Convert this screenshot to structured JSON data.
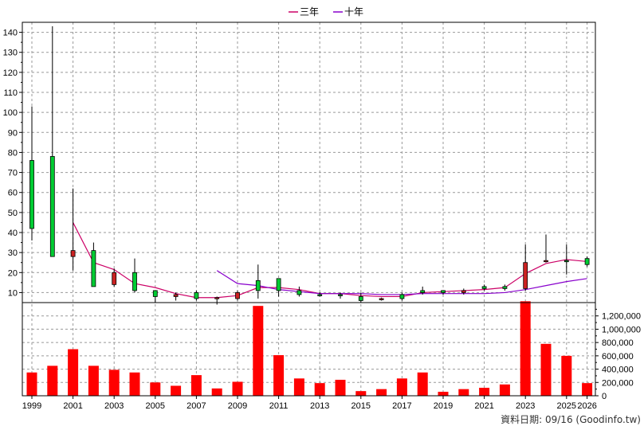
{
  "chart_data": {
    "type": "candlestick",
    "legend": [
      {
        "name": "三年",
        "color": "#cc0066"
      },
      {
        "name": "十年",
        "color": "#8800cc"
      }
    ],
    "legend_placement": "top-center",
    "footer": "資料日期: 09/16  (Goodinfo.tw)",
    "grid": true,
    "colors": {
      "up": "#00cc33",
      "down": "#cc2222",
      "volume": "#ff0000",
      "grid": "#999999"
    },
    "x_labels": [
      "1999",
      "2001",
      "2003",
      "2005",
      "2007",
      "2009",
      "2011",
      "2013",
      "2015",
      "2017",
      "2019",
      "2021",
      "2023",
      "2025",
      "2026"
    ],
    "price_axis": {
      "ylim": [
        5,
        145
      ],
      "ticks": [
        10,
        20,
        30,
        40,
        50,
        60,
        70,
        80,
        90,
        100,
        110,
        120,
        130,
        140
      ]
    },
    "volume_axis": {
      "ylim": [
        0,
        1400000
      ],
      "ticks": [
        "0",
        "200,000",
        "400,000",
        "600,000",
        "800,000",
        "1,000,000",
        "1,200,000"
      ]
    },
    "years": [
      1999,
      2000,
      2001,
      2002,
      2003,
      2004,
      2005,
      2006,
      2007,
      2008,
      2009,
      2010,
      2011,
      2012,
      2013,
      2014,
      2015,
      2016,
      2017,
      2018,
      2019,
      2020,
      2021,
      2022,
      2023,
      2024,
      2025,
      2026
    ],
    "candles": [
      {
        "open": 42,
        "high": 103,
        "low": 36,
        "close": 76
      },
      {
        "open": 28,
        "high": 143,
        "low": 28,
        "close": 78
      },
      {
        "open": 31,
        "high": 62,
        "low": 21,
        "close": 28
      },
      {
        "open": 13,
        "high": 35,
        "low": 13,
        "close": 31
      },
      {
        "open": 20,
        "high": 22,
        "low": 13,
        "close": 14
      },
      {
        "open": 11,
        "high": 27,
        "low": 10,
        "close": 20
      },
      {
        "open": 8,
        "high": 11,
        "low": 5,
        "close": 11
      },
      {
        "open": 9,
        "high": 10,
        "low": 6,
        "close": 8
      },
      {
        "open": 7,
        "high": 11,
        "low": 6,
        "close": 10
      },
      {
        "open": 7.5,
        "high": 8,
        "low": 4,
        "close": 7
      },
      {
        "open": 10,
        "high": 11,
        "low": 6,
        "close": 7
      },
      {
        "open": 11,
        "high": 24,
        "low": 7,
        "close": 16
      },
      {
        "open": 11,
        "high": 17,
        "low": 8,
        "close": 17
      },
      {
        "open": 9,
        "high": 13,
        "low": 8,
        "close": 11
      },
      {
        "open": 9,
        "high": 10,
        "low": 8,
        "close": 9
      },
      {
        "open": 9,
        "high": 10,
        "low": 7,
        "close": 9
      },
      {
        "open": 6,
        "high": 10,
        "low": 5,
        "close": 8
      },
      {
        "open": 7,
        "high": 7.5,
        "low": 6,
        "close": 6.5
      },
      {
        "open": 7,
        "high": 10,
        "low": 6,
        "close": 9
      },
      {
        "open": 10,
        "high": 13,
        "low": 9,
        "close": 11
      },
      {
        "open": 10,
        "high": 11,
        "low": 9,
        "close": 11
      },
      {
        "open": 11,
        "high": 12,
        "low": 9,
        "close": 10
      },
      {
        "open": 12,
        "high": 14,
        "low": 11,
        "close": 13
      },
      {
        "open": 12,
        "high": 14,
        "low": 11,
        "close": 13
      },
      {
        "open": 25,
        "high": 34,
        "low": 11,
        "close": 12
      },
      {
        "open": 26,
        "high": 39,
        "low": 25,
        "close": 25.5
      },
      {
        "open": 26,
        "high": 34,
        "low": 19,
        "close": 26
      },
      {
        "open": 24,
        "high": 28,
        "low": 23,
        "close": 27
      }
    ],
    "volume": [
      350000,
      450000,
      700000,
      450000,
      390000,
      350000,
      200000,
      150000,
      310000,
      110000,
      210000,
      1350000,
      610000,
      260000,
      190000,
      240000,
      70000,
      100000,
      260000,
      350000,
      60000,
      100000,
      120000,
      170000,
      1420000,
      780000,
      600000,
      190000
    ],
    "series": [
      {
        "name": "三年",
        "x": [
          2001,
          2002,
          2003,
          2004,
          2005,
          2006,
          2007,
          2008,
          2009,
          2010,
          2011,
          2012,
          2013,
          2014,
          2015,
          2016,
          2017,
          2018,
          2019,
          2020,
          2021,
          2022,
          2023,
          2024,
          2025,
          2026
        ],
        "values": [
          45,
          25,
          21.5,
          14.5,
          12.5,
          9.5,
          7.5,
          7.5,
          8.5,
          12.5,
          12.5,
          11.5,
          9.5,
          9.5,
          8.5,
          8,
          8,
          10,
          10.5,
          11,
          11.5,
          12.5,
          19.5,
          24.5,
          26.5,
          25.5
        ]
      },
      {
        "name": "十年",
        "x": [
          2008,
          2009,
          2010,
          2011,
          2012,
          2013,
          2014,
          2015,
          2016,
          2017,
          2018,
          2019,
          2020,
          2021,
          2022,
          2023,
          2024,
          2025,
          2026
        ],
        "values": [
          21,
          14.5,
          13.5,
          11.5,
          10.5,
          9.5,
          9.5,
          9.5,
          9,
          9,
          9.5,
          9.5,
          9.5,
          9.5,
          10,
          11.5,
          13.5,
          15.5,
          17
        ]
      }
    ]
  }
}
